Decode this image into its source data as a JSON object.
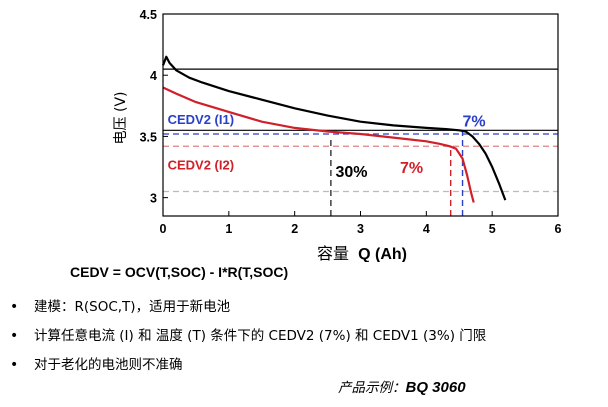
{
  "chart_data": {
    "type": "line",
    "xlabel_cn": "容量",
    "xlabel_q": "Q (Ah)",
    "ylabel": "电压 (V)",
    "xlim": [
      0,
      6
    ],
    "ylim": [
      2.85,
      4.5
    ],
    "xticks": [
      "0",
      "1",
      "2",
      "3",
      "4",
      "5",
      "6"
    ],
    "yticks": [
      "3",
      "3.5",
      "4",
      "4.5"
    ],
    "series": [
      {
        "name": "I1",
        "color": "#000000",
        "x": [
          0.0,
          0.05,
          0.1,
          0.2,
          0.4,
          0.6,
          1.0,
          1.5,
          2.0,
          2.5,
          3.0,
          3.5,
          4.0,
          4.3,
          4.5,
          4.6,
          4.7,
          4.8,
          4.9,
          5.0,
          5.1,
          5.2
        ],
        "y": [
          4.08,
          4.15,
          4.1,
          4.04,
          3.98,
          3.94,
          3.87,
          3.8,
          3.73,
          3.67,
          3.62,
          3.59,
          3.57,
          3.56,
          3.55,
          3.54,
          3.5,
          3.44,
          3.36,
          3.25,
          3.12,
          2.98
        ]
      },
      {
        "name": "I2",
        "color": "#d0202a",
        "x": [
          0.0,
          0.2,
          0.5,
          1.0,
          1.5,
          2.0,
          2.5,
          3.0,
          3.5,
          4.0,
          4.2,
          4.35,
          4.45,
          4.55,
          4.62,
          4.68,
          4.72
        ],
        "y": [
          3.9,
          3.85,
          3.78,
          3.7,
          3.62,
          3.57,
          3.54,
          3.52,
          3.49,
          3.46,
          3.44,
          3.42,
          3.4,
          3.32,
          3.18,
          3.04,
          2.96
        ]
      }
    ],
    "hlines": [
      {
        "y": 4.05,
        "color": "#000000",
        "style": "solid"
      },
      {
        "y": 3.55,
        "color": "#000000",
        "style": "solid"
      },
      {
        "y": 3.52,
        "color": "#2a3fc8",
        "style": "dashed"
      },
      {
        "y": 3.42,
        "color": "#e08080",
        "style": "dashed"
      },
      {
        "y": 3.05,
        "color": "#bbbbbb",
        "style": "dashed"
      }
    ],
    "vlines": [
      {
        "x": 2.55,
        "y0": 2.85,
        "y1": 3.5,
        "color": "#333333"
      },
      {
        "x": 4.37,
        "y0": 2.85,
        "y1": 3.42,
        "color": "#d0202a"
      },
      {
        "x": 4.55,
        "y0": 2.85,
        "y1": 3.54,
        "color": "#2a3fc8"
      }
    ],
    "labels": [
      {
        "text": "CEDV2 (I1)",
        "x": 0.07,
        "y": 3.6,
        "color": "#2a3fc8",
        "size": 13
      },
      {
        "text": "CEDV2 (I2)",
        "x": 0.07,
        "y": 3.23,
        "color": "#d0202a",
        "size": 13
      },
      {
        "text": "7%",
        "x": 4.55,
        "y": 3.58,
        "color": "#2a3fc8",
        "size": 16
      },
      {
        "text": "30%",
        "x": 2.62,
        "y": 3.17,
        "color": "#000000",
        "size": 16
      },
      {
        "text": "7%",
        "x": 3.6,
        "y": 3.2,
        "color": "#d0202a",
        "size": 16
      }
    ]
  },
  "formula": "CEDV = OCV(T,SOC) - I*R(T,SOC)",
  "bullet_symbol": "•",
  "bullets": [
    "建模：R(SOC,T)，适用于新电池",
    "计算任意电流 (I) 和 温度 (T) 条件下的 CEDV2 (7%) 和 CEDV1 (3%) 门限",
    "对于老化的电池则不准确"
  ],
  "example_label": "产品示例：",
  "example_value": "BQ 3060"
}
